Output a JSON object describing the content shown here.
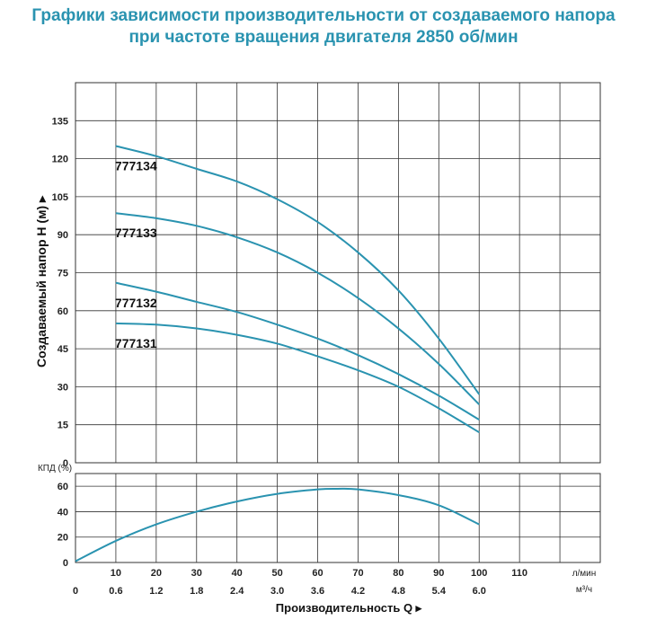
{
  "title": {
    "line1": "Графики зависимости производительности от создаваемого напора",
    "line2": "при частоте вращения двигателя 2850 об/мин"
  },
  "colors": {
    "curve": "#2a93b0",
    "title": "#2a93b0",
    "grid": "#333333"
  },
  "chart_data": [
    {
      "type": "line",
      "ylabel": "Создаваемый напор H (м)",
      "xlim": [
        0,
        130
      ],
      "ylim": [
        0,
        150
      ],
      "yticks": [
        0,
        15,
        30,
        45,
        60,
        75,
        90,
        105,
        120,
        135
      ],
      "grid": true,
      "series": [
        {
          "name": "777134",
          "x": [
            10,
            20,
            30,
            40,
            50,
            60,
            70,
            80,
            90,
            100
          ],
          "values": [
            125,
            121,
            116,
            111,
            104,
            95,
            83,
            68,
            49,
            27
          ]
        },
        {
          "name": "777133",
          "x": [
            10,
            20,
            30,
            40,
            50,
            60,
            70,
            80,
            90,
            100
          ],
          "values": [
            98.5,
            96.5,
            93.5,
            89,
            83,
            75,
            65,
            53,
            39,
            23
          ]
        },
        {
          "name": "777132",
          "x": [
            10,
            20,
            30,
            40,
            50,
            60,
            70,
            80,
            90,
            100
          ],
          "values": [
            71,
            67.5,
            63.5,
            59.5,
            54.5,
            49,
            42.5,
            35,
            26.5,
            17
          ]
        },
        {
          "name": "777131",
          "x": [
            10,
            20,
            30,
            40,
            50,
            60,
            70,
            80,
            90,
            100
          ],
          "values": [
            55,
            54.5,
            53,
            50.5,
            47,
            42,
            36.5,
            30,
            21.5,
            12
          ]
        }
      ]
    },
    {
      "type": "line",
      "ylabel": "КПД (%)",
      "xlabel": "Производительность Q",
      "xlim": [
        0,
        130
      ],
      "ylim": [
        0,
        70
      ],
      "yticks": [
        0,
        20,
        40,
        60
      ],
      "x_unit_top": "л/мин",
      "x_unit_bottom": "м³/ч",
      "xticks_lmin": [
        "10",
        "20",
        "30",
        "40",
        "50",
        "60",
        "70",
        "80",
        "90",
        "100",
        "110"
      ],
      "xticks_m3h": [
        "0",
        "0.6",
        "1.2",
        "1.8",
        "2.4",
        "3.0",
        "3.6",
        "4.2",
        "4.8",
        "5.4",
        "6.0"
      ],
      "grid": true,
      "series": [
        {
          "x": [
            0,
            10,
            20,
            30,
            40,
            50,
            60,
            65,
            70,
            80,
            90,
            100
          ],
          "values": [
            1,
            17,
            30,
            40,
            48,
            54,
            57.5,
            58,
            57.5,
            53,
            45,
            30
          ]
        }
      ]
    }
  ]
}
